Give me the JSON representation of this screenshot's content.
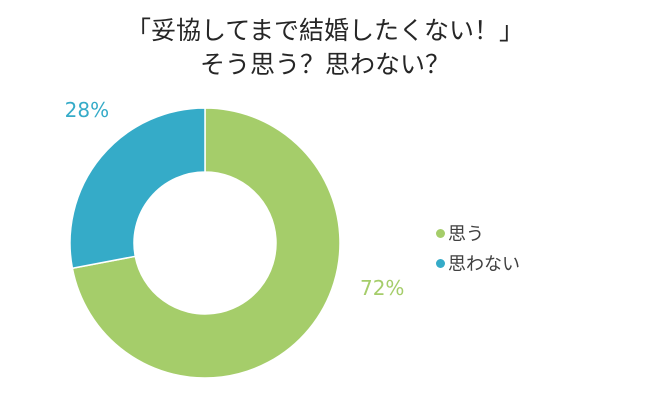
{
  "chart_data": {
    "type": "pie",
    "title": "「妥協してまで結婚したくない！」",
    "subtitle": "そう思う？思わない？",
    "categories": [
      "思う",
      "思わない"
    ],
    "values": [
      72,
      28
    ],
    "data_labels": [
      "72%",
      "28%"
    ],
    "colors": [
      "#a5cd6a",
      "#35abc8"
    ],
    "legend_position": "right",
    "donut": true
  }
}
